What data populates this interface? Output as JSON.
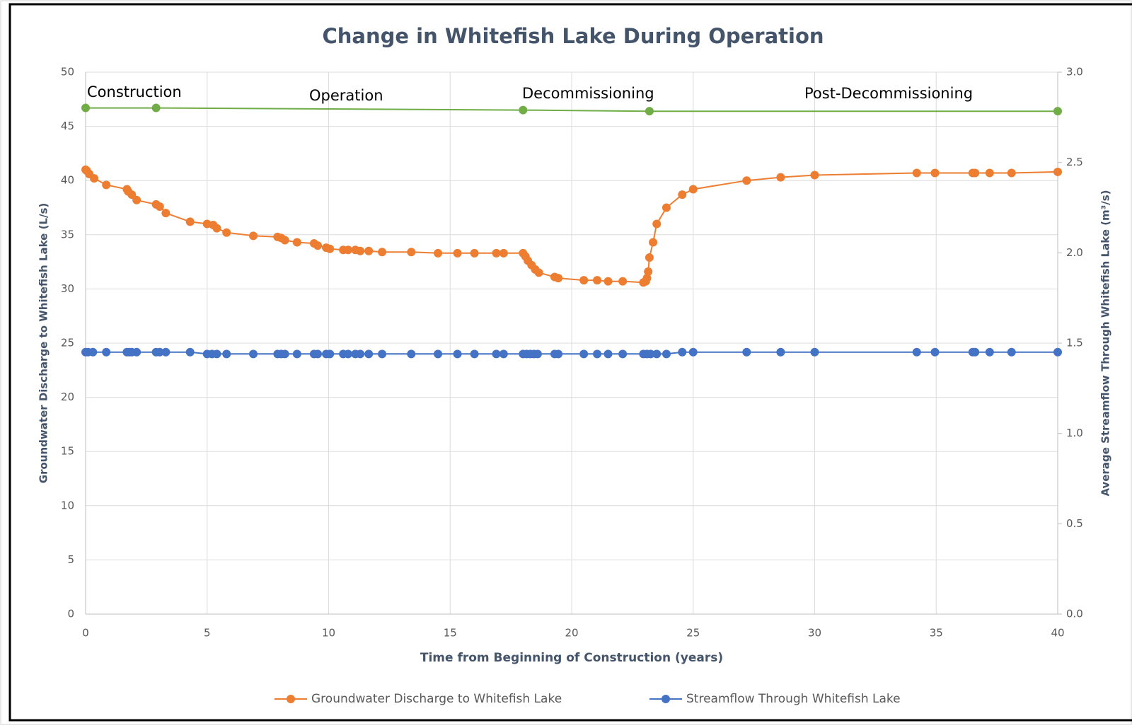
{
  "chart_data": {
    "type": "line",
    "title": "Change in Whitefish Lake During Operation",
    "x_label": "Time from Beginning of Construction  (years)",
    "y_label": "Groundwater  Discharge  to Whitefish Lake (L/s)",
    "y2_label": "Average Streamflow Through Whitefish Lake (m³/s)",
    "annotations": [
      "Construction",
      "Operation",
      "Decommissioning",
      "Post-Decommissioning"
    ],
    "xlim": [
      0,
      40
    ],
    "xticks": [
      0,
      5,
      10,
      15,
      20,
      25,
      30,
      35,
      40
    ],
    "ylim": [
      0,
      50
    ],
    "yticks": [
      0,
      5,
      10,
      15,
      20,
      25,
      30,
      35,
      40,
      45,
      50
    ],
    "y2lim": [
      0,
      3
    ],
    "y2ticks": [
      {
        "value": 0,
        "label": "0.0"
      },
      0.5,
      {
        "value": 1,
        "label": "1.0"
      },
      1.5,
      {
        "value": 2,
        "label": "2.0"
      },
      2.5,
      {
        "value": 3,
        "label": "3.0"
      }
    ],
    "grid": true,
    "series": [
      {
        "color": "#70ad47",
        "x": [
          0,
          2.9,
          18,
          23.2,
          40
        ],
        "values": [
          46.7,
          46.7,
          46.5,
          46.4,
          46.4
        ]
      },
      {
        "name": "Groundwater Discharge to Whitefish Lake",
        "color": "#ed7d31",
        "x": [
          0,
          0.05,
          0.15,
          0.35,
          0.85,
          1.7,
          1.75,
          1.9,
          2.1,
          2.9,
          3.05,
          3.3,
          4.3,
          5.0,
          5.25,
          5.4,
          5.8,
          6.9,
          7.9,
          8.05,
          8.2,
          8.7,
          9.4,
          9.55,
          9.9,
          10.05,
          10.6,
          10.8,
          11.1,
          11.3,
          11.65,
          12.2,
          13.4,
          14.5,
          15.3,
          16.0,
          16.9,
          17.2,
          18.0,
          18.1,
          18.2,
          18.35,
          18.5,
          18.65,
          19.3,
          19.45,
          20.5,
          21.05,
          21.5,
          22.1,
          22.95,
          23.05,
          23.1,
          23.15,
          23.2,
          23.35,
          23.5,
          23.9,
          24.55,
          25.0,
          27.2,
          28.6,
          30.0,
          34.2,
          34.95,
          36.5,
          36.6,
          37.2,
          38.1,
          40
        ],
        "values": [
          41,
          40.9,
          40.6,
          40.2,
          39.6,
          39.2,
          39.0,
          38.7,
          38.2,
          37.8,
          37.6,
          37.0,
          36.2,
          36.0,
          35.9,
          35.6,
          35.2,
          34.9,
          34.8,
          34.7,
          34.5,
          34.3,
          34.2,
          34.0,
          33.8,
          33.7,
          33.6,
          33.6,
          33.6,
          33.5,
          33.5,
          33.4,
          33.4,
          33.3,
          33.3,
          33.3,
          33.3,
          33.3,
          33.3,
          33.0,
          32.6,
          32.2,
          31.8,
          31.5,
          31.1,
          31.0,
          30.8,
          30.8,
          30.7,
          30.7,
          30.6,
          30.7,
          31.0,
          31.6,
          32.9,
          34.3,
          36.0,
          37.5,
          38.7,
          39.2,
          40.0,
          40.3,
          40.5,
          40.7,
          40.7,
          40.7,
          40.7,
          40.7,
          40.7,
          40.8
        ]
      },
      {
        "name": "Streamflow Through Whitefish Lake",
        "color": "#4472c4",
        "axis": "y2",
        "x": [
          0,
          0.1,
          0.3,
          0.85,
          1.7,
          1.8,
          1.9,
          2.1,
          2.9,
          3.05,
          3.3,
          4.3,
          5.0,
          5.2,
          5.4,
          5.8,
          6.9,
          7.9,
          8.05,
          8.2,
          8.7,
          9.4,
          9.55,
          9.9,
          10.05,
          10.6,
          10.8,
          11.1,
          11.3,
          11.65,
          12.2,
          13.4,
          14.5,
          15.3,
          16.0,
          16.9,
          17.2,
          18.0,
          18.15,
          18.3,
          18.45,
          18.6,
          19.3,
          19.45,
          20.5,
          21.05,
          21.5,
          22.1,
          22.95,
          23.1,
          23.25,
          23.5,
          23.9,
          24.55,
          25.0,
          27.2,
          28.6,
          30.0,
          34.2,
          34.95,
          36.5,
          36.6,
          37.2,
          38.1,
          40
        ],
        "values": [
          1.45,
          1.45,
          1.45,
          1.45,
          1.45,
          1.45,
          1.45,
          1.45,
          1.45,
          1.45,
          1.45,
          1.45,
          1.44,
          1.44,
          1.44,
          1.44,
          1.44,
          1.44,
          1.44,
          1.44,
          1.44,
          1.44,
          1.44,
          1.44,
          1.44,
          1.44,
          1.44,
          1.44,
          1.44,
          1.44,
          1.44,
          1.44,
          1.44,
          1.44,
          1.44,
          1.44,
          1.44,
          1.44,
          1.44,
          1.44,
          1.44,
          1.44,
          1.44,
          1.44,
          1.44,
          1.44,
          1.44,
          1.44,
          1.44,
          1.44,
          1.44,
          1.44,
          1.44,
          1.45,
          1.45,
          1.45,
          1.45,
          1.45,
          1.45,
          1.45,
          1.45,
          1.45,
          1.45,
          1.45,
          1.45
        ]
      }
    ]
  }
}
